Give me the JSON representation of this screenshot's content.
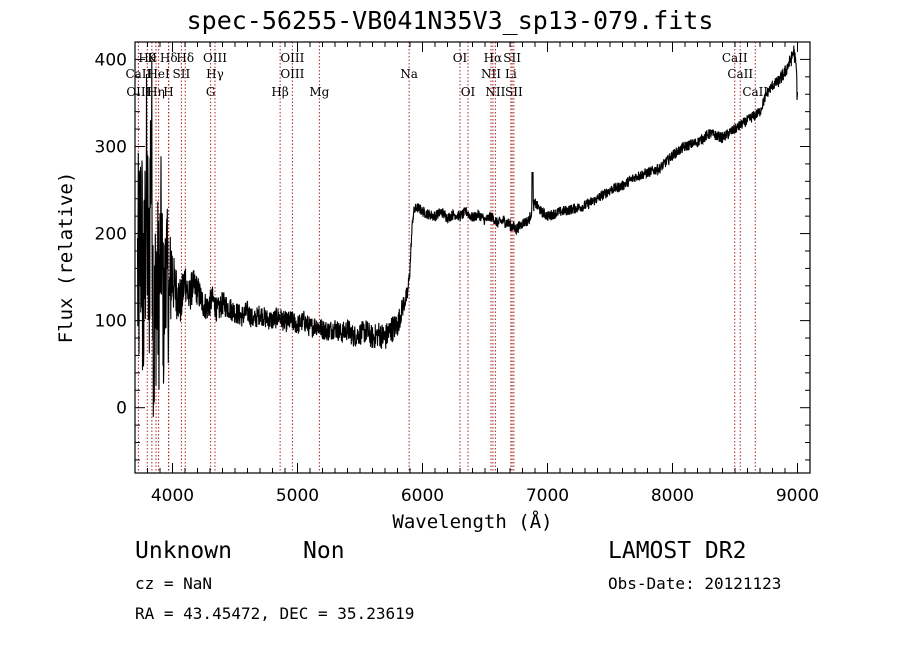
{
  "chart_data": {
    "type": "line",
    "title": "spec-56255-VB041N35V3_sp13-079.fits",
    "xlabel": "Wavelength (Å)",
    "ylabel": "Flux (relative)",
    "xlim": [
      3700,
      9100
    ],
    "ylim": [
      -75,
      420
    ],
    "xticks": [
      4000,
      5000,
      6000,
      7000,
      8000,
      9000
    ],
    "yticks": [
      0,
      100,
      200,
      300,
      400
    ],
    "grid": false,
    "spectrum": {
      "x": [
        3730,
        3750,
        3770,
        3790,
        3810,
        3830,
        3850,
        3870,
        3890,
        3910,
        3930,
        3950,
        3970,
        3990,
        4010,
        4040,
        4070,
        4100,
        4130,
        4160,
        4200,
        4240,
        4280,
        4320,
        4360,
        4400,
        4450,
        4500,
        4550,
        4600,
        4650,
        4700,
        4750,
        4800,
        4850,
        4900,
        4950,
        5000,
        5050,
        5100,
        5150,
        5200,
        5250,
        5300,
        5350,
        5400,
        5450,
        5500,
        5550,
        5600,
        5650,
        5700,
        5750,
        5800,
        5850,
        5880,
        5900,
        5910,
        5920,
        5930,
        5950,
        5980,
        6000,
        6050,
        6100,
        6150,
        6200,
        6250,
        6300,
        6350,
        6400,
        6450,
        6500,
        6550,
        6600,
        6650,
        6700,
        6750,
        6800,
        6850,
        6880,
        6900,
        6950,
        7000,
        7100,
        7200,
        7300,
        7400,
        7500,
        7600,
        7700,
        7800,
        7900,
        8000,
        8100,
        8200,
        8300,
        8400,
        8500,
        8600,
        8700,
        8750,
        8800,
        8850,
        8900,
        8930,
        8950,
        8970,
        8990,
        9000
      ],
      "y": [
        150,
        210,
        100,
        260,
        130,
        340,
        60,
        150,
        120,
        200,
        90,
        180,
        110,
        160,
        140,
        130,
        120,
        150,
        125,
        140,
        135,
        120,
        115,
        125,
        110,
        120,
        115,
        110,
        105,
        110,
        100,
        108,
        102,
        100,
        105,
        98,
        100,
        95,
        100,
        92,
        95,
        90,
        88,
        92,
        85,
        90,
        82,
        85,
        88,
        80,
        85,
        80,
        90,
        95,
        120,
        130,
        160,
        190,
        215,
        225,
        230,
        228,
        225,
        222,
        220,
        225,
        218,
        222,
        220,
        225,
        218,
        222,
        215,
        220,
        212,
        215,
        210,
        205,
        212,
        215,
        228,
        235,
        225,
        220,
        225,
        228,
        232,
        240,
        250,
        255,
        265,
        270,
        275,
        290,
        300,
        305,
        315,
        310,
        320,
        330,
        340,
        360,
        370,
        375,
        385,
        395,
        400,
        410,
        390,
        350
      ],
      "noise_amplitude": [
        90,
        90,
        90,
        90,
        90,
        80,
        80,
        75,
        70,
        60,
        55,
        50,
        45,
        40,
        35,
        30,
        28,
        25,
        22,
        20,
        18,
        17,
        16,
        15,
        15,
        14,
        14,
        13,
        13,
        13,
        12,
        12,
        12,
        12,
        12,
        12,
        12,
        12,
        12,
        12,
        12,
        12,
        12,
        12,
        12,
        13,
        13,
        13,
        14,
        14,
        15,
        16,
        16,
        14,
        12,
        10,
        8,
        6,
        6,
        6,
        6,
        6,
        6,
        6,
        6,
        6,
        6,
        6,
        6,
        6,
        6,
        6,
        6,
        6,
        6,
        7,
        7,
        7,
        6,
        6,
        6,
        6,
        6,
        6,
        6,
        6,
        6,
        6,
        6,
        6,
        6,
        6,
        6,
        6,
        6,
        6,
        6,
        6,
        6,
        6,
        6,
        6,
        6,
        7,
        8,
        8,
        8,
        8,
        10,
        15
      ]
    },
    "lines": [
      {
        "wl": 3798,
        "label": "Hθ",
        "row": 1
      },
      {
        "wl": 3835,
        "label": "K",
        "row": 1
      },
      {
        "wl": 3970,
        "label": "Hδ",
        "row": 1
      },
      {
        "wl": 4102,
        "label": "Hδ",
        "row": 1
      },
      {
        "wl": 4340,
        "label": "OIII",
        "row": 1
      },
      {
        "wl": 4959,
        "label": "OIII",
        "row": 1
      },
      {
        "wl": 6300,
        "label": "OI",
        "row": 1
      },
      {
        "wl": 6563,
        "label": "Hα",
        "row": 1
      },
      {
        "wl": 6717,
        "label": "SII",
        "row": 1
      },
      {
        "wl": 8498,
        "label": "CaII",
        "row": 1
      },
      {
        "wl": 3727,
        "label": "CaII",
        "row": 2
      },
      {
        "wl": 3889,
        "label": "HeI",
        "row": 2
      },
      {
        "wl": 4071,
        "label": "SII",
        "row": 2
      },
      {
        "wl": 4340,
        "label": "Hγ",
        "row": 2
      },
      {
        "wl": 4959,
        "label": "OIII",
        "row": 2
      },
      {
        "wl": 5893,
        "label": "Na",
        "row": 2
      },
      {
        "wl": 6548,
        "label": "NII",
        "row": 2
      },
      {
        "wl": 6707,
        "label": "Li",
        "row": 2
      },
      {
        "wl": 8542,
        "label": "CaII",
        "row": 2
      },
      {
        "wl": 3727,
        "label": "OIII",
        "row": 3
      },
      {
        "wl": 3868,
        "label": "Hη",
        "row": 3
      },
      {
        "wl": 3968,
        "label": "H",
        "row": 3
      },
      {
        "wl": 4305,
        "label": "G",
        "row": 3
      },
      {
        "wl": 4861,
        "label": "Hβ",
        "row": 3
      },
      {
        "wl": 5175,
        "label": "Mg",
        "row": 3
      },
      {
        "wl": 6364,
        "label": "OI",
        "row": 3
      },
      {
        "wl": 6583,
        "label": "NII",
        "row": 3
      },
      {
        "wl": 6731,
        "label": "SII",
        "row": 3
      },
      {
        "wl": 8662,
        "label": "CaII",
        "row": 3
      }
    ],
    "line_marker_color": "#b22222",
    "spectrum_color": "#000000"
  },
  "info": {
    "class": "Unknown",
    "subclass": "Non",
    "cz": "cz = NaN",
    "coords": "RA =  43.45472, DEC =  35.23619",
    "survey": "LAMOST DR2",
    "obs_date": "Obs-Date: 20121123"
  }
}
